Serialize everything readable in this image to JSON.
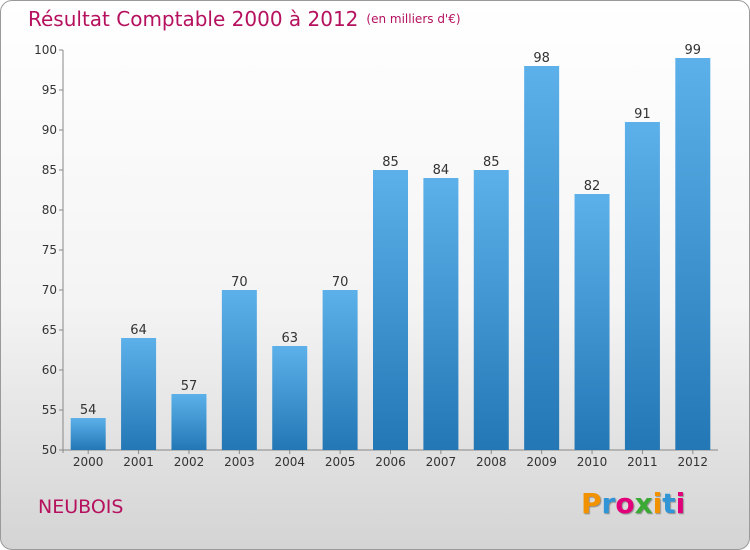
{
  "title": "Résultat Comptable 2000 à 2012",
  "subtitle": "(en milliers d'€)",
  "place": "NEUBOIS",
  "brand": {
    "letters": [
      "P",
      "r",
      "o",
      "x",
      "i",
      "t",
      "i"
    ],
    "colors": [
      "#f39200",
      "#2f95d6",
      "#e2007a",
      "#3aaa35",
      "#f39200",
      "#2f95d6",
      "#e2007a"
    ]
  },
  "colors": {
    "bar_top": "#5db1ea",
    "bar_bottom": "#2377b5",
    "title": "#b5115e"
  },
  "chart_data": {
    "type": "bar",
    "title": "Résultat Comptable 2000 à 2012",
    "xlabel": "",
    "ylabel": "",
    "categories": [
      "2000",
      "2001",
      "2002",
      "2003",
      "2004",
      "2005",
      "2006",
      "2007",
      "2008",
      "2009",
      "2010",
      "2011",
      "2012"
    ],
    "values": [
      54,
      64,
      57,
      70,
      63,
      70,
      85,
      84,
      85,
      98,
      82,
      91,
      99
    ],
    "ylim": [
      50,
      100
    ],
    "yticks": [
      50,
      55,
      60,
      65,
      70,
      75,
      80,
      85,
      90,
      95,
      100
    ],
    "grid": false,
    "data_labels": true
  }
}
